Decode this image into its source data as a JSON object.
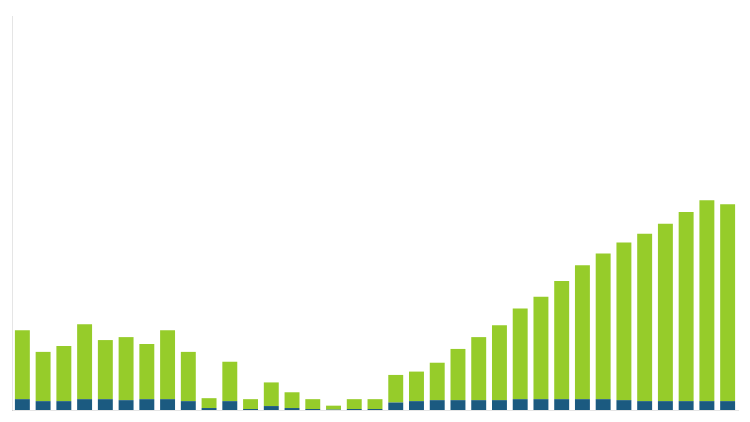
{
  "chart_data": {
    "type": "bar",
    "stacked": true,
    "grid": false,
    "tick_labels": false,
    "categories": [
      null,
      null,
      null,
      null,
      null,
      null,
      null,
      null,
      null,
      null,
      null,
      null,
      null,
      null,
      null,
      null,
      null,
      null,
      null,
      null,
      null,
      null,
      null,
      null,
      null,
      null,
      null,
      null,
      null,
      null,
      null,
      null,
      null,
      null,
      null
    ],
    "ylim": [
      0,
      20
    ],
    "series": [
      {
        "color": "#1b5a80",
        "values": [
          0.55,
          0.45,
          0.45,
          0.55,
          0.55,
          0.5,
          0.55,
          0.55,
          0.45,
          0.1,
          0.45,
          0.05,
          0.2,
          0.1,
          0.05,
          0.02,
          0.05,
          0.05,
          0.38,
          0.45,
          0.5,
          0.5,
          0.5,
          0.5,
          0.55,
          0.55,
          0.55,
          0.55,
          0.55,
          0.5,
          0.45,
          0.45,
          0.45,
          0.45,
          0.45
        ]
      },
      {
        "color": "#96cc2a",
        "values": [
          3.5,
          2.5,
          2.8,
          3.8,
          3.0,
          3.2,
          2.8,
          3.5,
          2.5,
          0.5,
          2.0,
          0.5,
          1.2,
          0.8,
          0.5,
          0.2,
          0.5,
          0.5,
          1.4,
          1.5,
          1.9,
          2.6,
          3.2,
          3.8,
          4.6,
          5.2,
          6.0,
          6.8,
          7.4,
          8.0,
          8.5,
          9.0,
          9.6,
          10.2,
          10.0
        ]
      }
    ]
  }
}
